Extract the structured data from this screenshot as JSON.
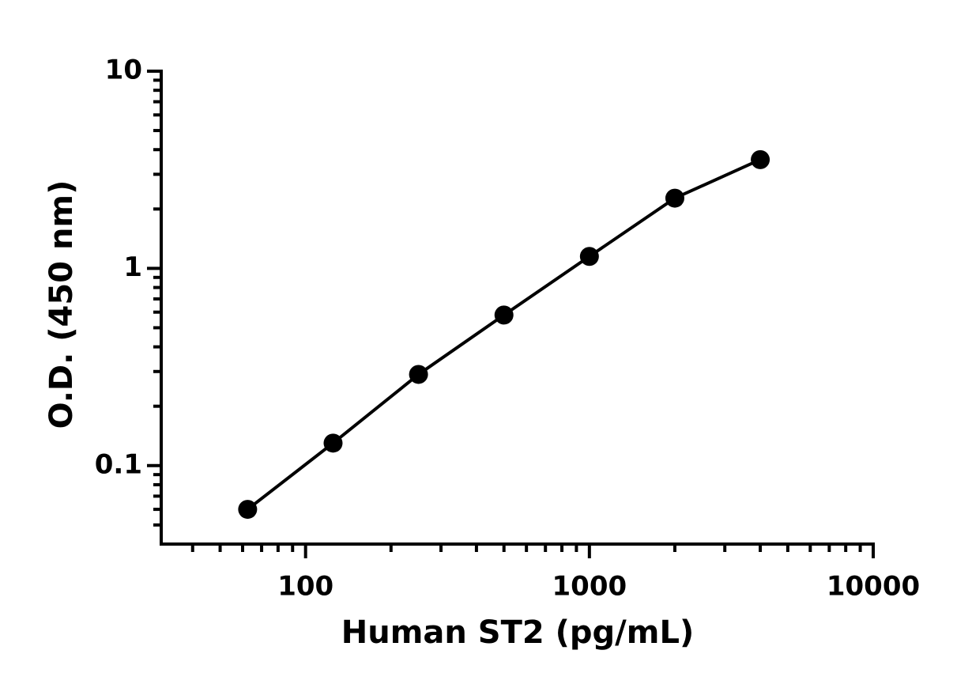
{
  "chart_data": {
    "type": "scatter-line",
    "xlabel": "Human ST2 (pg/mL)",
    "ylabel": "O.D. (450 nm)",
    "xscale": "log",
    "yscale": "log",
    "x": [
      62.5,
      125,
      250,
      500,
      1000,
      2000,
      4000
    ],
    "series": [
      {
        "color": "#000000",
        "values": [
          0.06,
          0.13,
          0.29,
          0.58,
          1.15,
          2.27,
          3.56
        ]
      }
    ],
    "xlim": [
      31,
      10000
    ],
    "ylim": [
      0.04,
      10
    ],
    "xticks": [
      100,
      1000,
      10000
    ],
    "yticks": [
      0.1,
      1,
      10
    ],
    "xminorticks": [
      40,
      50,
      60,
      70,
      80,
      90,
      200,
      300,
      400,
      500,
      600,
      700,
      800,
      900,
      2000,
      3000,
      4000,
      5000,
      6000,
      7000,
      8000,
      9000
    ],
    "yminorticks": [
      0.05,
      0.06,
      0.07,
      0.08,
      0.09,
      0.2,
      0.3,
      0.4,
      0.5,
      0.6,
      0.7,
      0.8,
      0.9,
      2,
      3,
      4,
      5,
      6,
      7,
      8,
      9
    ]
  }
}
